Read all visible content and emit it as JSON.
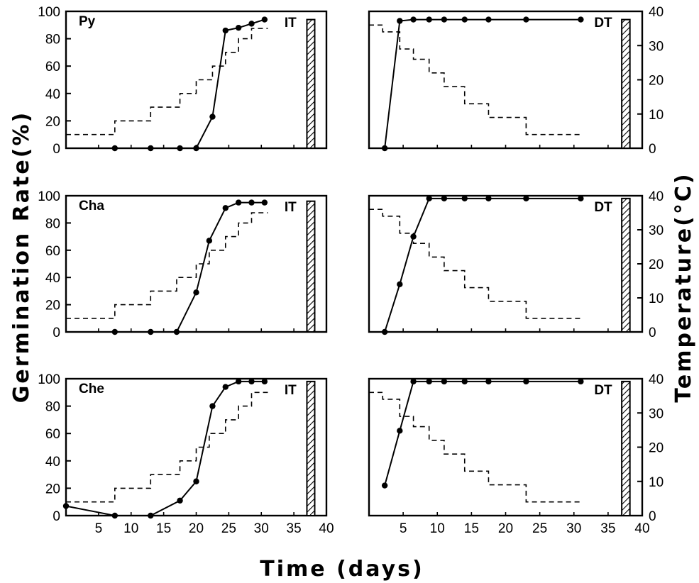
{
  "figure": {
    "ylabel_left": "Germination Rate(%)",
    "ylabel_right": "Temperature(°C)",
    "xlabel": "Time (days)"
  },
  "chart_data": [
    {
      "type": "line",
      "panel": "Py-IT",
      "species_label": "Py",
      "regime_label": "IT",
      "xlim": [
        0,
        40
      ],
      "ylim_left": [
        0,
        100
      ],
      "ylim_right": [
        0,
        40
      ],
      "xticks": [],
      "yticks_left": [
        "0",
        "20",
        "40",
        "60",
        "80",
        "100"
      ],
      "yticks_right": [],
      "series": [
        {
          "role": "germination",
          "x": [
            7.5,
            13,
            17.5,
            20,
            22.5,
            24.5,
            26.5,
            28.5,
            30.5
          ],
          "y": [
            0,
            0,
            0,
            0,
            23,
            86,
            88,
            91,
            94
          ]
        },
        {
          "role": "temperature",
          "steps": [
            [
              0,
              4
            ],
            [
              7.5,
              8
            ],
            [
              13,
              12
            ],
            [
              17.5,
              16
            ],
            [
              20,
              20
            ],
            [
              22.5,
              24
            ],
            [
              24.5,
              28
            ],
            [
              26.5,
              32
            ],
            [
              28.5,
              35
            ],
            [
              31,
              35
            ]
          ]
        }
      ],
      "bar": {
        "x": [
          37,
          38.2
        ],
        "top": 94
      }
    },
    {
      "type": "line",
      "panel": "Py-DT",
      "species_label": "",
      "regime_label": "DT",
      "xlim": [
        0,
        40
      ],
      "ylim_left": [
        0,
        100
      ],
      "ylim_right": [
        0,
        40
      ],
      "xticks": [],
      "yticks_left": [],
      "yticks_right": [
        "0",
        "10",
        "20",
        "30",
        "40"
      ],
      "series": [
        {
          "role": "germination",
          "x": [
            2.3,
            4.5,
            6.5,
            8.8,
            11,
            14,
            17.5,
            23,
            31
          ],
          "y": [
            0,
            93,
            94,
            94,
            94,
            94,
            94,
            94,
            94
          ]
        },
        {
          "role": "temperature",
          "steps": [
            [
              0,
              36
            ],
            [
              2,
              34
            ],
            [
              4.5,
              29
            ],
            [
              6.5,
              26
            ],
            [
              8.8,
              22
            ],
            [
              11,
              18
            ],
            [
              14,
              13
            ],
            [
              17.5,
              9
            ],
            [
              23,
              4
            ],
            [
              31,
              4
            ]
          ]
        }
      ],
      "bar": {
        "x": [
          37,
          38.2
        ],
        "top": 94
      }
    },
    {
      "type": "line",
      "panel": "Cha-IT",
      "species_label": "Cha",
      "regime_label": "IT",
      "xlim": [
        0,
        40
      ],
      "ylim_left": [
        0,
        100
      ],
      "ylim_right": [
        0,
        40
      ],
      "xticks": [],
      "yticks_left": [
        "0",
        "20",
        "40",
        "60",
        "80",
        "100"
      ],
      "yticks_right": [],
      "series": [
        {
          "role": "germination",
          "x": [
            7.5,
            13,
            17,
            20,
            22,
            24.5,
            26.5,
            28.5,
            30.5
          ],
          "y": [
            0,
            0,
            0,
            29,
            67,
            91,
            95,
            95,
            95
          ]
        },
        {
          "role": "temperature",
          "steps": [
            [
              0,
              4
            ],
            [
              7.5,
              8
            ],
            [
              13,
              12
            ],
            [
              17,
              16
            ],
            [
              20,
              20
            ],
            [
              22,
              24
            ],
            [
              24.5,
              28
            ],
            [
              26.5,
              32
            ],
            [
              28.5,
              35
            ],
            [
              31,
              35
            ]
          ]
        }
      ],
      "bar": {
        "x": [
          37,
          38.2
        ],
        "top": 96
      }
    },
    {
      "type": "line",
      "panel": "Cha-DT",
      "species_label": "",
      "regime_label": "DT",
      "xlim": [
        0,
        40
      ],
      "ylim_left": [
        0,
        100
      ],
      "ylim_right": [
        0,
        40
      ],
      "xticks": [],
      "yticks_left": [],
      "yticks_right": [
        "0",
        "10",
        "20",
        "30",
        "40"
      ],
      "series": [
        {
          "role": "germination",
          "x": [
            2.3,
            4.5,
            6.5,
            8.8,
            11,
            14,
            17.5,
            23,
            31
          ],
          "y": [
            0,
            35,
            70,
            98,
            98,
            98,
            98,
            98,
            98
          ]
        },
        {
          "role": "temperature",
          "steps": [
            [
              0,
              36
            ],
            [
              2,
              34
            ],
            [
              4.5,
              29
            ],
            [
              6.5,
              26
            ],
            [
              8.8,
              22
            ],
            [
              11,
              18
            ],
            [
              14,
              13
            ],
            [
              17.5,
              9
            ],
            [
              23,
              4
            ],
            [
              31,
              4
            ]
          ]
        }
      ],
      "bar": {
        "x": [
          37,
          38.2
        ],
        "top": 98
      }
    },
    {
      "type": "line",
      "panel": "Che-IT",
      "species_label": "Che",
      "regime_label": "IT",
      "xlim": [
        0,
        40
      ],
      "ylim_left": [
        0,
        100
      ],
      "ylim_right": [
        0,
        40
      ],
      "xticks": [
        "5",
        "10",
        "15",
        "20",
        "25",
        "30",
        "35",
        "40"
      ],
      "yticks_left": [
        "0",
        "20",
        "40",
        "60",
        "80",
        "100"
      ],
      "yticks_right": [],
      "series": [
        {
          "role": "germination",
          "x": [
            0,
            7.5,
            13,
            17.5,
            20,
            22.5,
            24.5,
            26.5,
            28.5,
            30.5
          ],
          "y": [
            7,
            0,
            0,
            11,
            25,
            80,
            94,
            98,
            98,
            98
          ]
        },
        {
          "role": "temperature",
          "steps": [
            [
              0,
              4
            ],
            [
              7.5,
              8
            ],
            [
              13,
              12
            ],
            [
              17.5,
              16
            ],
            [
              20,
              20
            ],
            [
              22,
              24
            ],
            [
              24.5,
              28
            ],
            [
              26.5,
              32
            ],
            [
              28.5,
              36
            ],
            [
              31,
              36
            ]
          ]
        }
      ],
      "bar": {
        "x": [
          37,
          38.2
        ],
        "top": 98
      }
    },
    {
      "type": "line",
      "panel": "Che-DT",
      "species_label": "",
      "regime_label": "DT",
      "xlim": [
        0,
        40
      ],
      "ylim_left": [
        0,
        100
      ],
      "ylim_right": [
        0,
        40
      ],
      "xticks": [
        "5",
        "10",
        "15",
        "20",
        "25",
        "30",
        "35",
        "40"
      ],
      "yticks_left": [],
      "yticks_right": [
        "0",
        "10",
        "20",
        "30",
        "40"
      ],
      "series": [
        {
          "role": "germination",
          "x": [
            2.3,
            4.5,
            6.5,
            8.8,
            11,
            14,
            17.5,
            23,
            31
          ],
          "y": [
            22,
            62,
            98,
            98,
            98,
            98,
            98,
            98,
            98
          ]
        },
        {
          "role": "temperature",
          "steps": [
            [
              0,
              36
            ],
            [
              2,
              34
            ],
            [
              4.5,
              29
            ],
            [
              6.5,
              26
            ],
            [
              8.8,
              22
            ],
            [
              11,
              18
            ],
            [
              14,
              13
            ],
            [
              17.5,
              9
            ],
            [
              23,
              4
            ],
            [
              31,
              4
            ]
          ]
        }
      ],
      "bar": {
        "x": [
          37,
          38.2
        ],
        "top": 98
      }
    }
  ]
}
